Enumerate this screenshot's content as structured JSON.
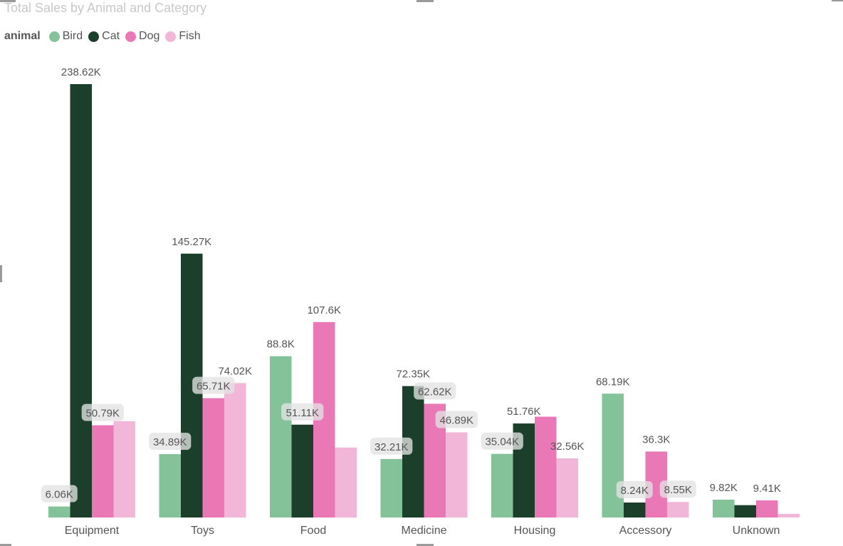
{
  "chart_data": {
    "type": "bar",
    "title": "Total Sales by Animal and Category",
    "legend_title": "animal",
    "legend_position": "top-left",
    "categories": [
      "Equipment",
      "Toys",
      "Food",
      "Medicine",
      "Housing",
      "Accessory",
      "Unknown"
    ],
    "series": [
      {
        "name": "Bird",
        "color": "#84c39a",
        "values": [
          6.06,
          34.89,
          88.8,
          32.21,
          35.04,
          68.19,
          9.82
        ],
        "labels": [
          "6.06K",
          "34.89K",
          "88.8K",
          "32.21K",
          "35.04K",
          "68.19K",
          "9.82K"
        ]
      },
      {
        "name": "Cat",
        "color": "#1b3f2a",
        "values": [
          238.62,
          145.27,
          51.11,
          72.35,
          51.76,
          8.24,
          6.8
        ],
        "labels": [
          "238.62K",
          "145.27K",
          "51.11K",
          "72.35K",
          "51.76K",
          "8.24K",
          ""
        ]
      },
      {
        "name": "Dog",
        "color": "#ea78b7",
        "values": [
          50.79,
          65.71,
          107.6,
          62.62,
          55.5,
          36.3,
          9.41
        ],
        "labels": [
          "50.79K",
          "65.71K",
          "107.6K",
          "62.62K",
          "",
          "36.3K",
          "9.41K"
        ]
      },
      {
        "name": "Fish",
        "color": "#f1b6d8",
        "values": [
          53.0,
          74.02,
          38.5,
          46.89,
          32.56,
          8.55,
          2.0
        ],
        "labels": [
          "",
          "74.02K",
          "",
          "46.89K",
          "32.56K",
          "8.55K",
          ""
        ]
      }
    ],
    "ylim": [
      0,
      240
    ],
    "y_unit": "K",
    "grid": false,
    "xlabel": "",
    "ylabel": ""
  }
}
